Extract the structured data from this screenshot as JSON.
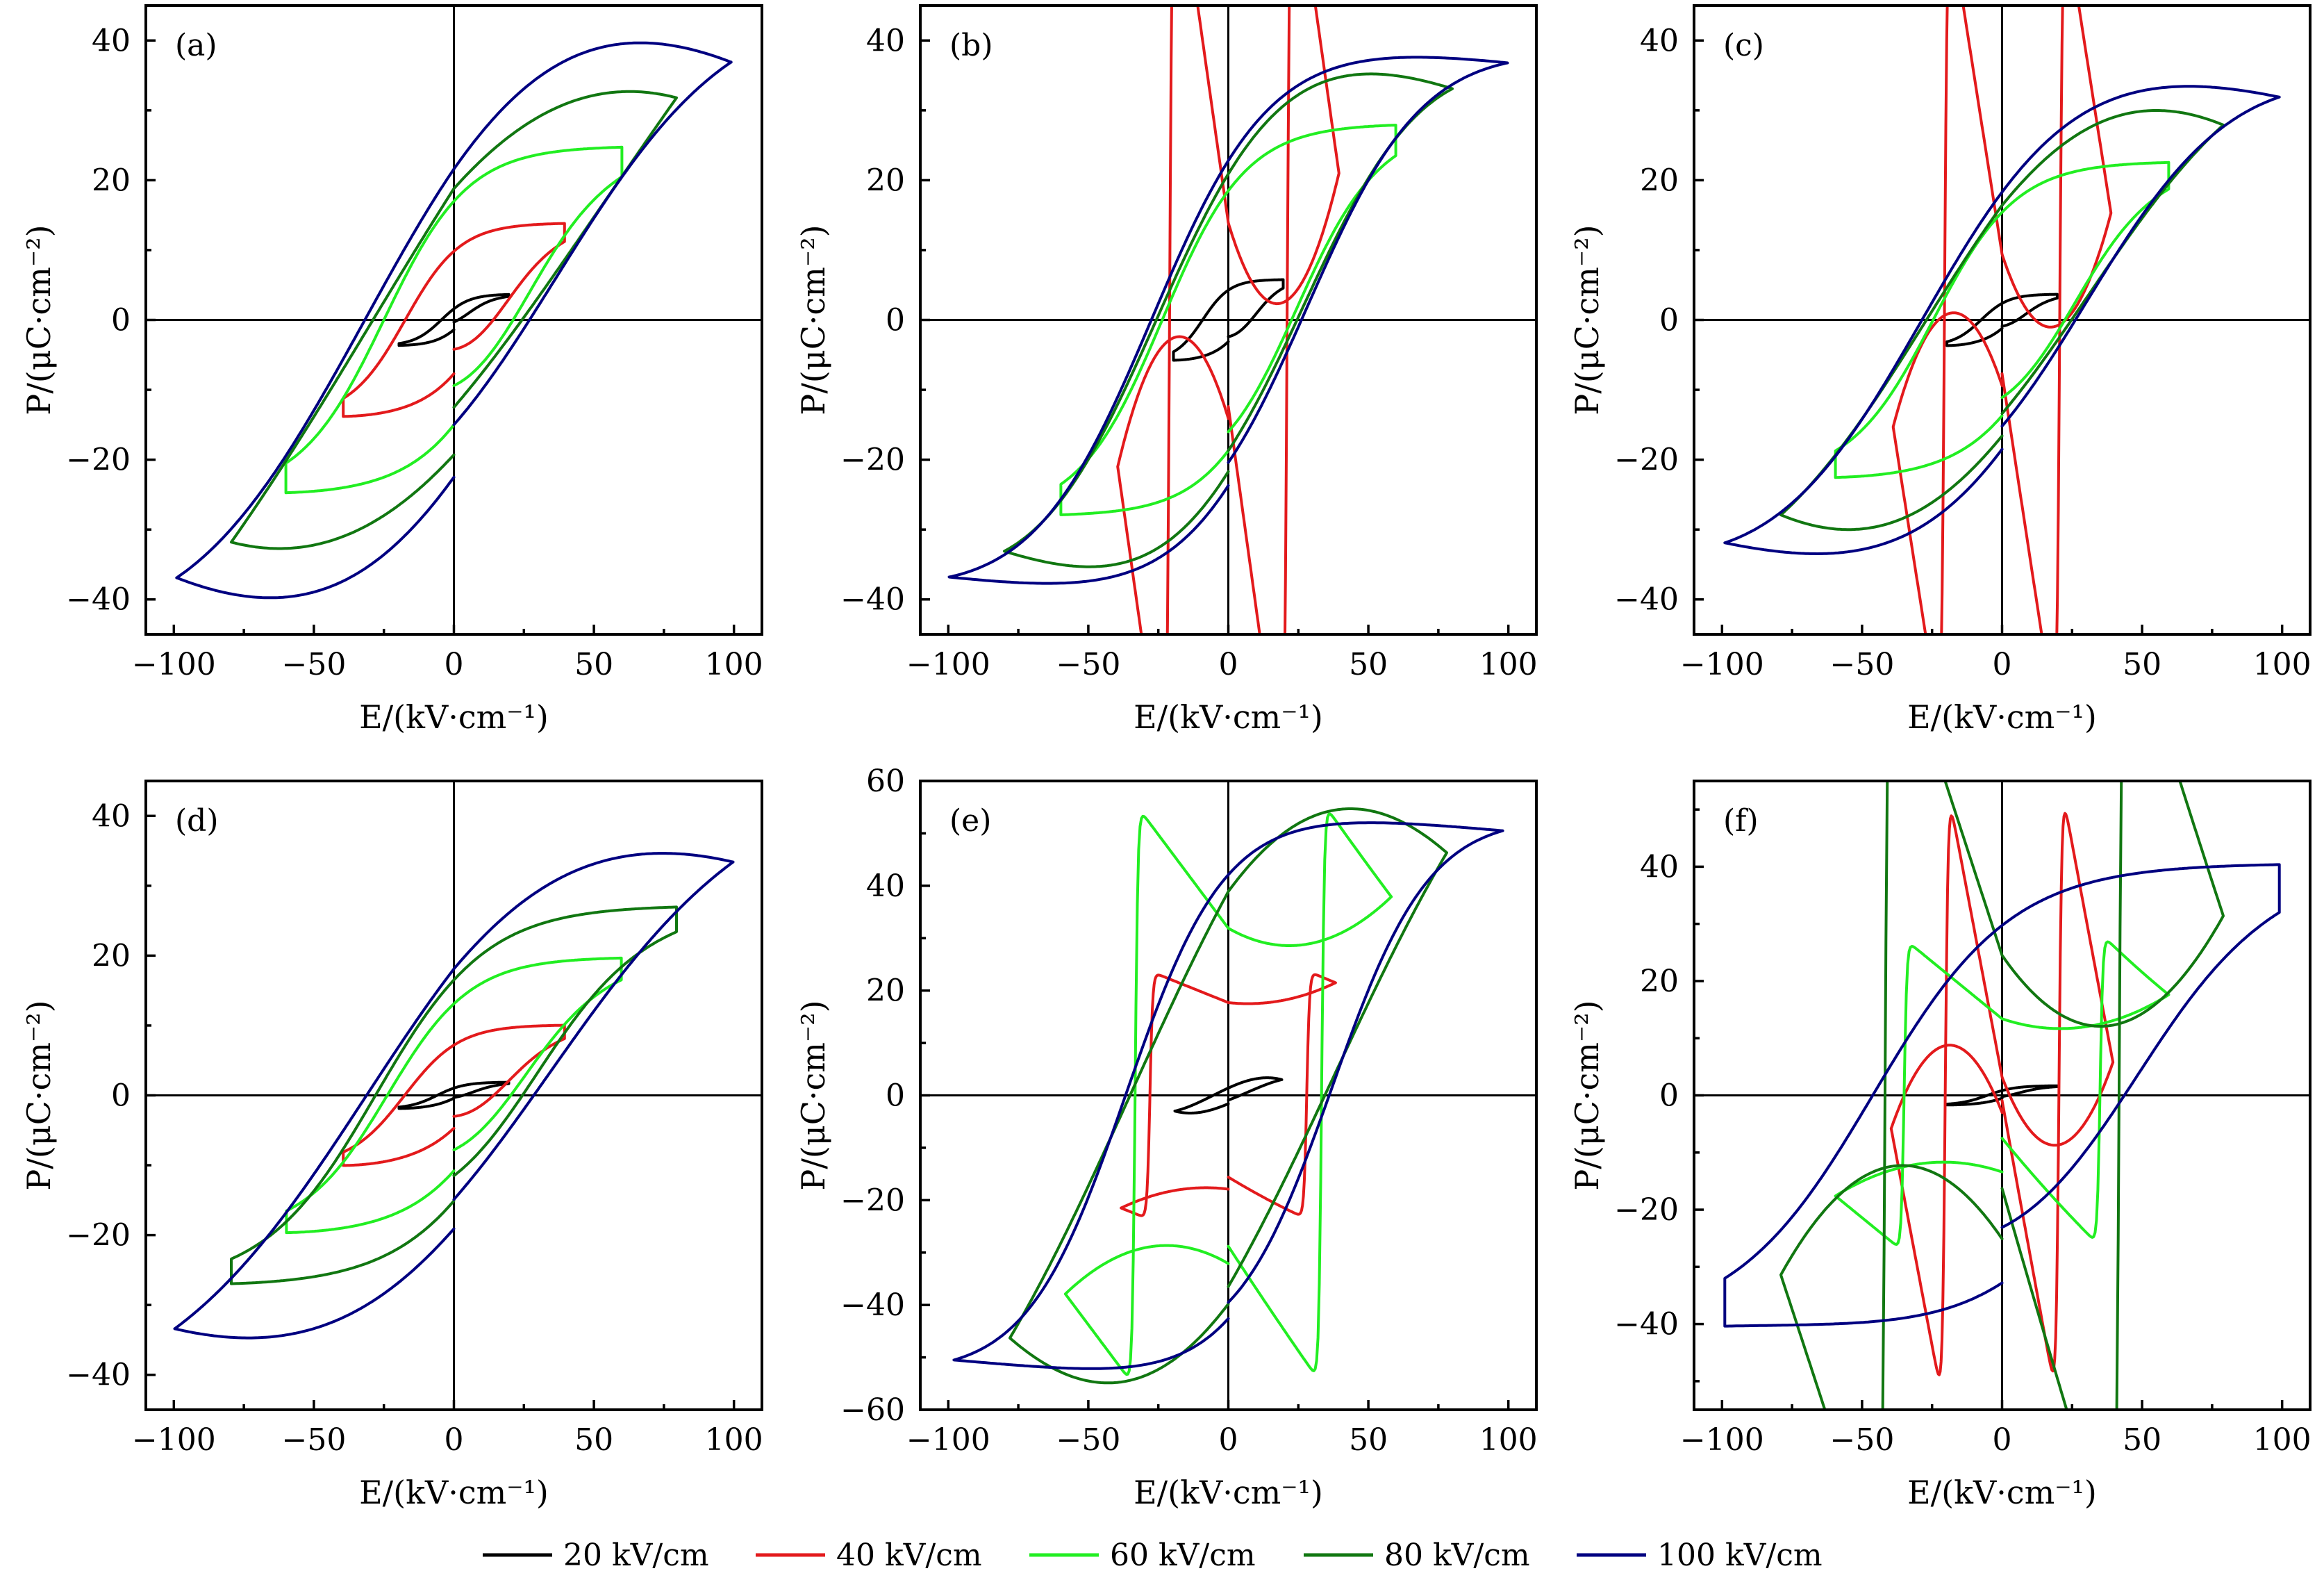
{
  "figure": {
    "legend_placement": "bottom-center"
  },
  "legend": [
    {
      "label": "20 kV/cm",
      "color": "#000000"
    },
    {
      "label": "40 kV/cm",
      "color": "#e31a1c"
    },
    {
      "label": "60 kV/cm",
      "color": "#22ee22"
    },
    {
      "label": "80 kV/cm",
      "color": "#117711"
    },
    {
      "label": "100 kV/cm",
      "color": "#000080"
    }
  ],
  "chart_data": [
    {
      "type": "line",
      "panel": "(a)",
      "xlabel": "E/(kV·cm⁻¹)",
      "ylabel": "P/(μC·cm⁻²)",
      "xlim": [
        -110,
        110
      ],
      "ylim": [
        -45,
        45
      ],
      "xticks": [
        -100,
        -50,
        0,
        50,
        100
      ],
      "yticks": [
        -40,
        -20,
        0,
        20,
        40
      ],
      "x_minor_step": 25,
      "y_minor_step": 10,
      "series": [
        {
          "name": "20 kV/cm",
          "Emax": 19.6,
          "Pmax": 3.7,
          "Pr": 1.0,
          "Ec": 4.5,
          "P_start": -0.3,
          "P_end": -1.4
        },
        {
          "name": "40 kV/cm",
          "Emax": 39.5,
          "Pmax": 13.9,
          "Pr": 7.5,
          "Ec": 17.4,
          "P_start": -4.2,
          "P_end": -7.7
        },
        {
          "name": "60 kV/cm",
          "Emax": 60,
          "Pmax": 24.9,
          "Pr": 14.5,
          "Ec": 25,
          "P_start": -9.4,
          "P_end": -15
        },
        {
          "name": "80 kV/cm",
          "Emax": 79.5,
          "Pmax": 31.8,
          "Pr": 18.8,
          "Ec": 28.9,
          "P_start": -12.5,
          "P_end": -19.3
        },
        {
          "name": "100 kV/cm",
          "Emax": 99,
          "Pmax": 36.9,
          "Pr": 21.6,
          "Ec": 31.8,
          "P_start": -15,
          "P_end": -22.5
        }
      ]
    },
    {
      "type": "line",
      "panel": "(b)",
      "xlabel": "E/(kV·cm⁻¹)",
      "ylabel": "P/(μC·cm⁻²)",
      "xlim": [
        -110,
        110
      ],
      "ylim": [
        -45,
        45
      ],
      "xticks": [
        -100,
        -50,
        0,
        50,
        100
      ],
      "yticks": [
        -40,
        -20,
        0,
        20,
        40
      ],
      "x_minor_step": 25,
      "y_minor_step": 10,
      "series": [
        {
          "name": "20 kV/cm",
          "Emax": 19.6,
          "Pmax": 5.8,
          "Pr": 2.8,
          "Ec": 9.2,
          "P_start": -2.4,
          "P_end": -3.1
        },
        {
          "name": "40 kV/cm",
          "Emax": 39.5,
          "Pmax": 21,
          "Pr": 13.9,
          "Ec": 21,
          "P_start": -12.4,
          "P_end": -14.1
        },
        {
          "name": "60 kV/cm",
          "Emax": 59.8,
          "Pmax": 28.1,
          "Pr": 18.1,
          "Ec": 23.6,
          "P_start": -16,
          "P_end": -18.7
        },
        {
          "name": "80 kV/cm",
          "Emax": 80,
          "Pmax": 33.1,
          "Pr": 20.9,
          "Ec": 25.7,
          "P_start": -18.7,
          "P_end": -21.7
        },
        {
          "name": "100 kV/cm",
          "Emax": 99.7,
          "Pmax": 36.8,
          "Pr": 22.8,
          "Ec": 27.5,
          "P_start": -20.4,
          "P_end": -23.7
        }
      ]
    },
    {
      "type": "line",
      "panel": "(c)",
      "xlabel": "E/(kV·cm⁻¹)",
      "ylabel": "P/(μC·cm⁻²)",
      "xlim": [
        -110,
        110
      ],
      "ylim": [
        -45,
        45
      ],
      "xticks": [
        -100,
        -50,
        0,
        50,
        100
      ],
      "yticks": [
        -40,
        -20,
        0,
        20,
        40
      ],
      "x_minor_step": 25,
      "y_minor_step": 10,
      "series": [
        {
          "name": "20 kV/cm",
          "Emax": 19.7,
          "Pmax": 3.7,
          "Pr": 1.4,
          "Ec": 7.5,
          "P_start": -0.9,
          "P_end": -1.2
        },
        {
          "name": "40 kV/cm",
          "Emax": 38.9,
          "Pmax": 15.3,
          "Pr": 9.4,
          "Ec": 20.6,
          "P_start": -7.7,
          "P_end": -9.4
        },
        {
          "name": "60 kV/cm",
          "Emax": 59.5,
          "Pmax": 22.7,
          "Pr": 13.6,
          "Ec": 24.6,
          "P_start": -11.1,
          "P_end": -13.7
        },
        {
          "name": "80 kV/cm",
          "Emax": 79,
          "Pmax": 27.9,
          "Pr": 16.4,
          "Ec": 27,
          "P_start": -13.4,
          "P_end": -16.6
        },
        {
          "name": "100 kV/cm",
          "Emax": 99,
          "Pmax": 31.9,
          "Pr": 18.3,
          "Ec": 28.6,
          "P_start": -15.2,
          "P_end": -18.5
        }
      ]
    },
    {
      "type": "line",
      "panel": "(d)",
      "xlabel": "E/(kV·cm⁻¹)",
      "ylabel": "P/(μC·cm⁻²)",
      "xlim": [
        -110,
        110
      ],
      "ylim": [
        -45,
        45
      ],
      "xticks": [
        -100,
        -50,
        0,
        50,
        100
      ],
      "yticks": [
        -40,
        -20,
        0,
        20,
        40
      ],
      "x_minor_step": 25,
      "y_minor_step": 10,
      "series": [
        {
          "name": "20 kV/cm",
          "Emax": 19.6,
          "Pmax": 1.9,
          "Pr": 0.3,
          "Ec": 6,
          "P_start": -0.3,
          "P_end": -0.4
        },
        {
          "name": "40 kV/cm",
          "Emax": 39.5,
          "Pmax": 10.1,
          "Pr": 4.7,
          "Ec": 17.6,
          "P_start": -3,
          "P_end": -4.7
        },
        {
          "name": "60 kV/cm",
          "Emax": 59.8,
          "Pmax": 19.8,
          "Pr": 10.4,
          "Ec": 23.8,
          "P_start": -7.8,
          "P_end": -10.8
        },
        {
          "name": "80 kV/cm",
          "Emax": 79.5,
          "Pmax": 27.2,
          "Pr": 14.6,
          "Ec": 28,
          "P_start": -11.5,
          "P_end": -15.1
        },
        {
          "name": "100 kV/cm",
          "Emax": 99.7,
          "Pmax": 33.4,
          "Pr": 18.1,
          "Ec": 31.2,
          "P_start": -14.9,
          "P_end": -19.1
        }
      ]
    },
    {
      "type": "line",
      "panel": "(e)",
      "xlabel": "E/(kV·cm⁻¹)",
      "ylabel": "P/(μC·cm⁻²)",
      "xlim": [
        -110,
        110
      ],
      "ylim": [
        -60,
        60
      ],
      "xticks": [
        -100,
        -50,
        0,
        50,
        100
      ],
      "yticks": [
        -60,
        -40,
        -20,
        0,
        20,
        40,
        60
      ],
      "x_minor_step": 25,
      "y_minor_step": 10,
      "series": [
        {
          "name": "20 kV/cm",
          "Emax": 19.1,
          "Pmax": 3,
          "Pr": 1.4,
          "Ec": 5.4,
          "P_start": -0.9,
          "P_end": -1.6
        },
        {
          "name": "40 kV/cm",
          "Emax": 38.3,
          "Pmax": 21.5,
          "Pr": 17.7,
          "Ec": 28,
          "P_start": -15.6,
          "P_end": -17.9
        },
        {
          "name": "60 kV/cm",
          "Emax": 58.2,
          "Pmax": 37.9,
          "Pr": 31.9,
          "Ec": 33.3,
          "P_start": -28.8,
          "P_end": -32.1
        },
        {
          "name": "80 kV/cm",
          "Emax": 78,
          "Pmax": 46.3,
          "Pr": 38.9,
          "Ec": 35.1,
          "P_start": -36.5,
          "P_end": -39.8
        },
        {
          "name": "100 kV/cm",
          "Emax": 98,
          "Pmax": 50.5,
          "Pr": 42.1,
          "Ec": 36.7,
          "P_start": -39.5,
          "P_end": -42.6
        }
      ]
    },
    {
      "type": "line",
      "panel": "(f)",
      "xlabel": "E/(kV·cm⁻¹)",
      "ylabel": "P/(μC·cm⁻²)",
      "xlim": [
        -110,
        110
      ],
      "ylim": [
        -55,
        55
      ],
      "xticks": [
        -100,
        -50,
        0,
        50,
        100
      ],
      "yticks": [
        -40,
        -20,
        0,
        20,
        40
      ],
      "x_minor_step": 25,
      "y_minor_step": 10,
      "series": [
        {
          "name": "20 kV/cm",
          "Emax": 19.7,
          "Pmax": 1.7,
          "Pr": 0.6,
          "Ec": 5.3,
          "P_start": -0.2,
          "P_end": -0.5
        },
        {
          "name": "40 kV/cm",
          "Emax": 39.6,
          "Pmax": 5.8,
          "Pr": 3.2,
          "Ec": 20.3,
          "P_start": -0.9,
          "P_end": -3
        },
        {
          "name": "60 kV/cm",
          "Emax": 59.5,
          "Pmax": 17.6,
          "Pr": 13.4,
          "Ec": 35,
          "P_start": -7.5,
          "P_end": -13.4
        },
        {
          "name": "80 kV/cm",
          "Emax": 79,
          "Pmax": 31.4,
          "Pr": 24.5,
          "Ec": 41.8,
          "P_start": -16.3,
          "P_end": -25.1
        },
        {
          "name": "100 kV/cm",
          "Emax": 99,
          "Pmax": 40.6,
          "Pr": 32.2,
          "Ec": 46.2,
          "P_start": -23.1,
          "P_end": -32.8
        }
      ]
    }
  ]
}
